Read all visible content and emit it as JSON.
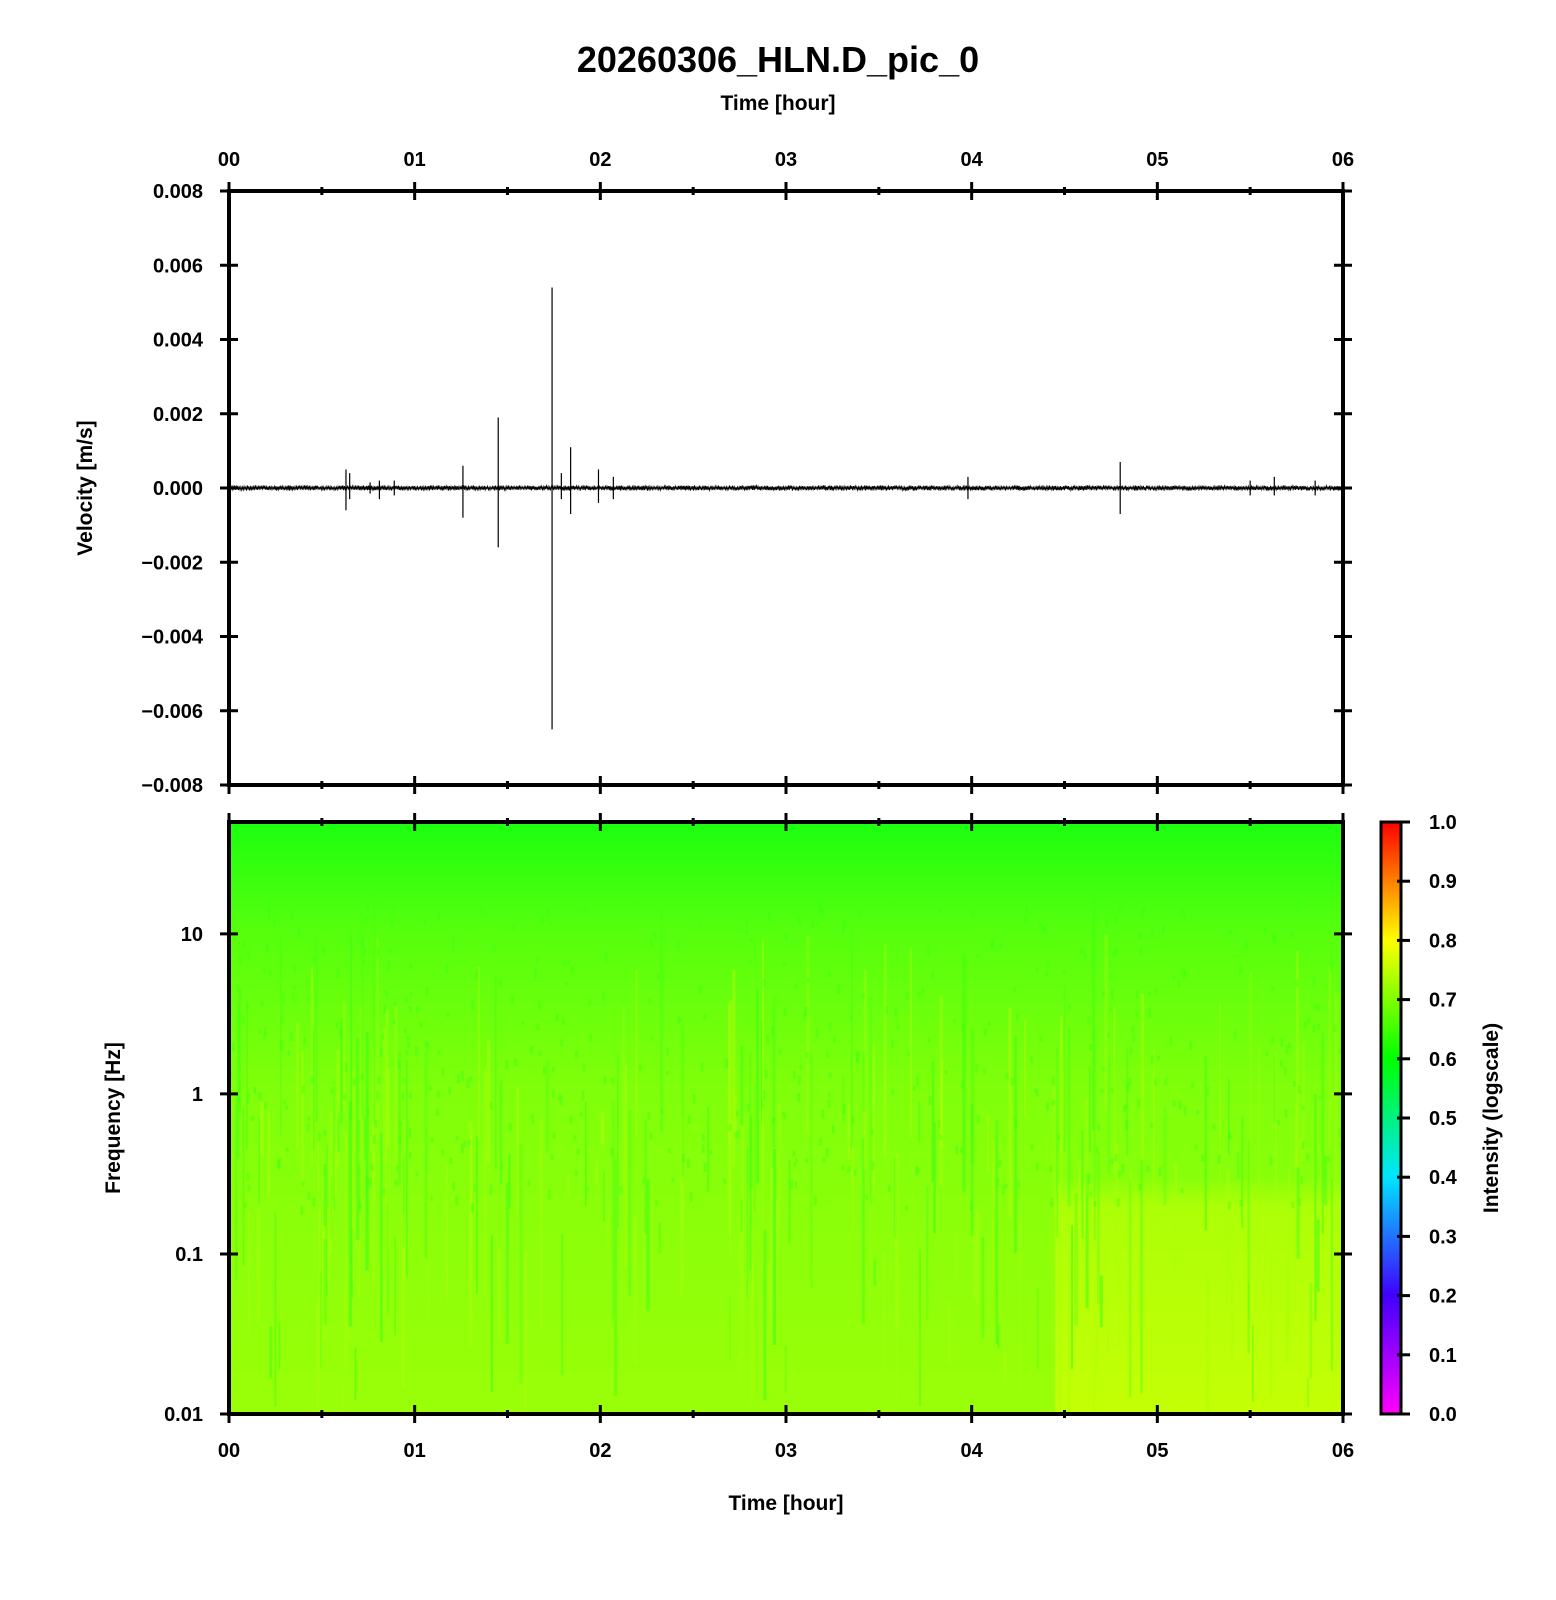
{
  "title": "20260306_HLN.D_pic_0",
  "chart_data": [
    {
      "type": "line",
      "panel": "waveform",
      "xlabel": "Time [hour]",
      "ylabel": "Velocity [m/s]",
      "xlim": [
        0,
        6
      ],
      "ylim": [
        -0.008,
        0.008
      ],
      "x_ticks": [
        "00",
        "01",
        "02",
        "03",
        "04",
        "05",
        "06"
      ],
      "x_tick_values": [
        0,
        1,
        2,
        3,
        4,
        5,
        6
      ],
      "y_ticks": [
        "0.008",
        "0.006",
        "0.004",
        "0.002",
        "0.000",
        "−0.002",
        "−0.004",
        "−0.006",
        "−0.008"
      ],
      "y_tick_values": [
        0.008,
        0.006,
        0.004,
        0.002,
        0.0,
        -0.002,
        -0.004,
        -0.006,
        -0.008
      ],
      "background_noise_amplitude": 5e-05,
      "line_color": "#000000",
      "spikes": [
        {
          "t": 0.63,
          "max": 0.0005,
          "min": -0.0006
        },
        {
          "t": 0.65,
          "max": 0.0004,
          "min": -0.0003
        },
        {
          "t": 0.76,
          "max": 0.00015,
          "min": -0.00015
        },
        {
          "t": 0.81,
          "max": 0.0002,
          "min": -0.0003
        },
        {
          "t": 0.89,
          "max": 0.0002,
          "min": -0.0002
        },
        {
          "t": 1.26,
          "max": 0.0006,
          "min": -0.0008
        },
        {
          "t": 1.45,
          "max": 0.0019,
          "min": -0.0016
        },
        {
          "t": 1.74,
          "max": 0.0054,
          "min": -0.0065
        },
        {
          "t": 1.79,
          "max": 0.0004,
          "min": -0.0003
        },
        {
          "t": 1.84,
          "max": 0.0011,
          "min": -0.0007
        },
        {
          "t": 1.99,
          "max": 0.0005,
          "min": -0.0004
        },
        {
          "t": 2.07,
          "max": 0.0003,
          "min": -0.0003
        },
        {
          "t": 3.98,
          "max": 0.0003,
          "min": -0.0003
        },
        {
          "t": 4.8,
          "max": 0.0007,
          "min": -0.0007
        },
        {
          "t": 5.5,
          "max": 0.0002,
          "min": -0.0002
        },
        {
          "t": 5.63,
          "max": 0.0003,
          "min": -0.0002
        },
        {
          "t": 5.85,
          "max": 0.0002,
          "min": -0.0002
        }
      ]
    },
    {
      "type": "heatmap",
      "panel": "spectrogram",
      "xlabel": "Time [hour]",
      "ylabel": "Frequency [Hz]",
      "xlim": [
        0,
        6
      ],
      "ylim": [
        0.01,
        50
      ],
      "y_scale": "log",
      "x_ticks": [
        "00",
        "01",
        "02",
        "03",
        "04",
        "05",
        "06"
      ],
      "x_tick_values": [
        0,
        1,
        2,
        3,
        4,
        5,
        6
      ],
      "y_ticks": [
        "10",
        "1",
        "0.1",
        "0.01"
      ],
      "y_tick_values": [
        10,
        1,
        0.1,
        0.01
      ],
      "colorbar": {
        "label": "Intensity (logscale)",
        "range": [
          0,
          1
        ],
        "ticks": [
          "1.0",
          "0.9",
          "0.8",
          "0.7",
          "0.6",
          "0.5",
          "0.4",
          "0.3",
          "0.2",
          "0.1",
          "0.0"
        ],
        "tick_values": [
          1.0,
          0.9,
          0.8,
          0.7,
          0.6,
          0.5,
          0.4,
          0.3,
          0.2,
          0.1,
          0.0
        ],
        "colormap": "rainbow (magenta 0.0 → blue → cyan → green → yellow → red 1.0)"
      },
      "intensity_profile": [
        {
          "freq": 50,
          "intensity": 0.63
        },
        {
          "freq": 10,
          "intensity": 0.65
        },
        {
          "freq": 1,
          "intensity": 0.69
        },
        {
          "freq": 0.1,
          "intensity": 0.69
        },
        {
          "freq": 0.01,
          "intensity": 0.7
        }
      ],
      "elevated_region": {
        "t_from": 4.45,
        "t_to": 6,
        "freq_below": 0.3,
        "intensity": 0.76
      }
    }
  ]
}
